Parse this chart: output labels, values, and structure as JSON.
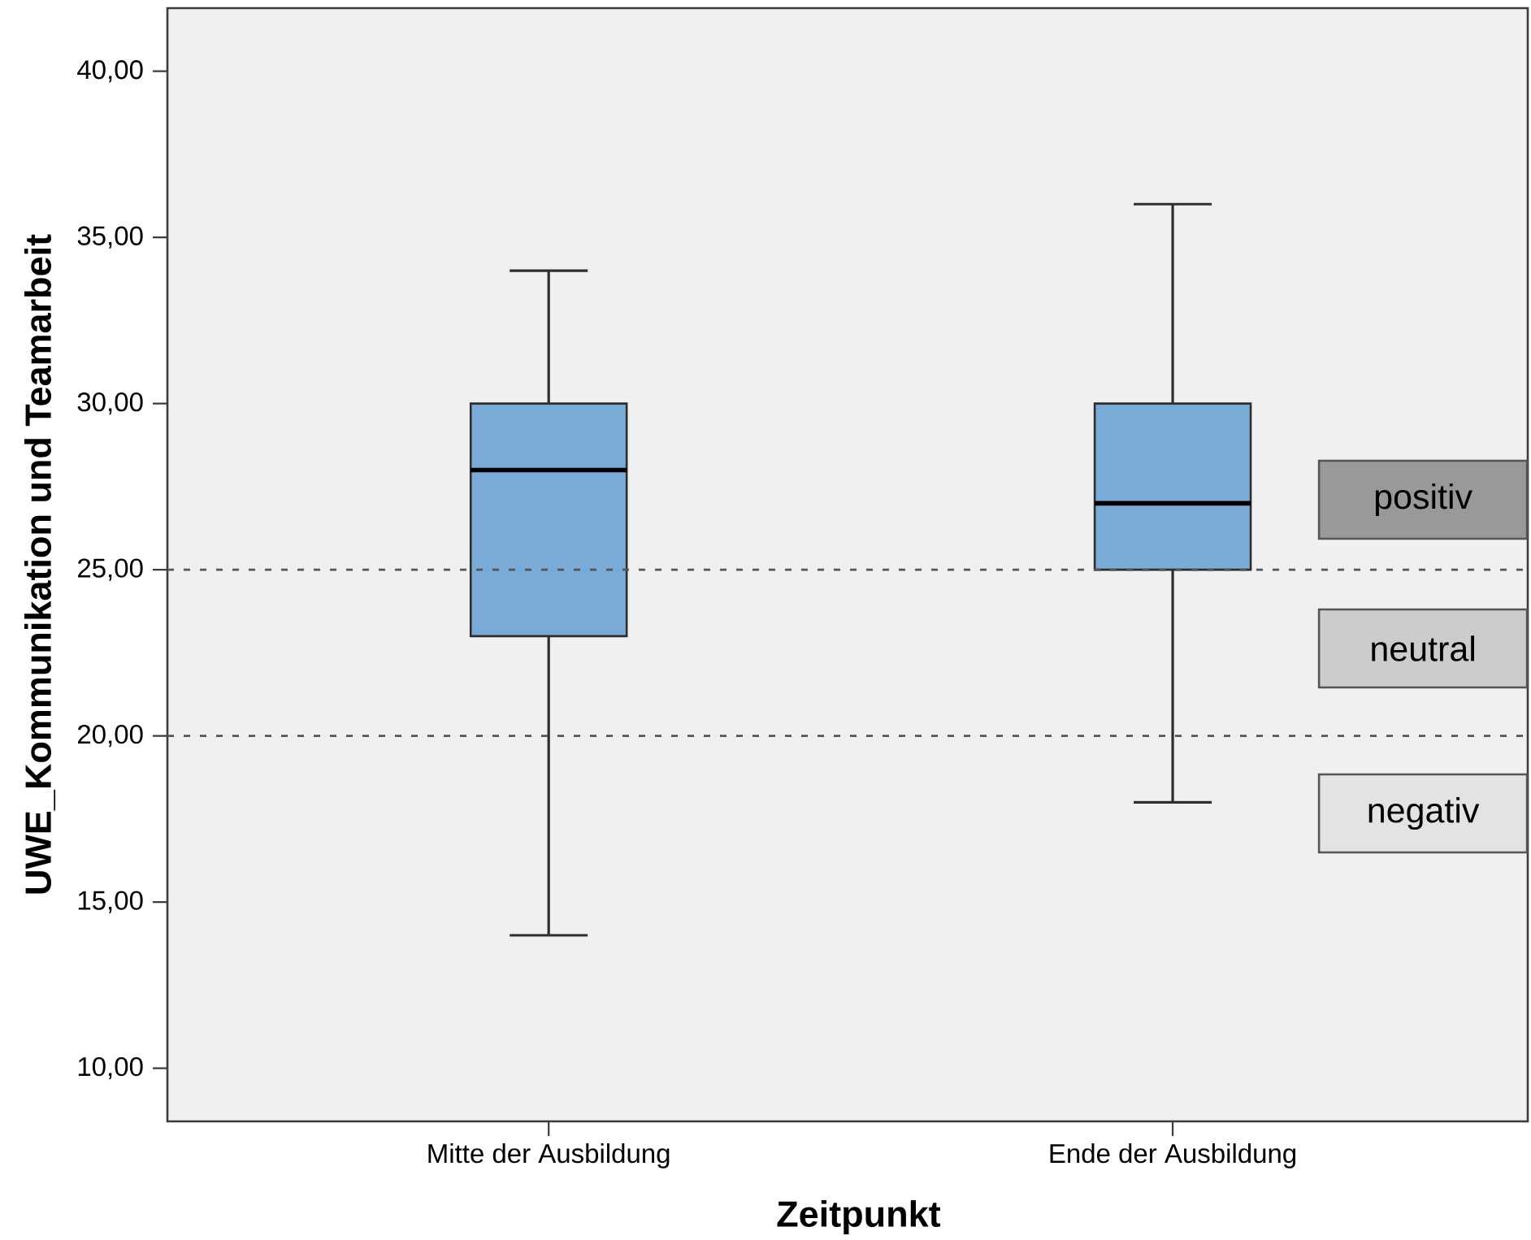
{
  "chart_data": {
    "type": "box",
    "xlabel": "Zeitpunkt",
    "ylabel": "UWE_Kommunikation und Teamarbeit",
    "categories": [
      "Mitte der Ausbildung",
      "Ende der Ausbildung"
    ],
    "color": "#7aaad6",
    "boxes": [
      {
        "low": 14,
        "q1": 23,
        "median": 28,
        "q3": 30,
        "high": 34
      },
      {
        "low": 18,
        "q1": 25,
        "median": 27,
        "q3": 30,
        "high": 36
      }
    ],
    "ylim": [
      8.4,
      41.9
    ],
    "yticks": [
      {
        "value": 10,
        "label": "10,00"
      },
      {
        "value": 15,
        "label": "15,00"
      },
      {
        "value": 20,
        "label": "20,00"
      },
      {
        "value": 25,
        "label": "25,00"
      },
      {
        "value": 30,
        "label": "30,00"
      },
      {
        "value": 35,
        "label": "35,00"
      },
      {
        "value": 40,
        "label": "40,00"
      }
    ],
    "ref_lines": [
      {
        "axis": "y",
        "value": 25,
        "color": "#555555",
        "line_style": "dashed"
      },
      {
        "axis": "y",
        "value": 20,
        "color": "#555555",
        "line_style": "dashed"
      }
    ],
    "annotations": [
      "positiv",
      "neutral",
      "negativ"
    ]
  }
}
